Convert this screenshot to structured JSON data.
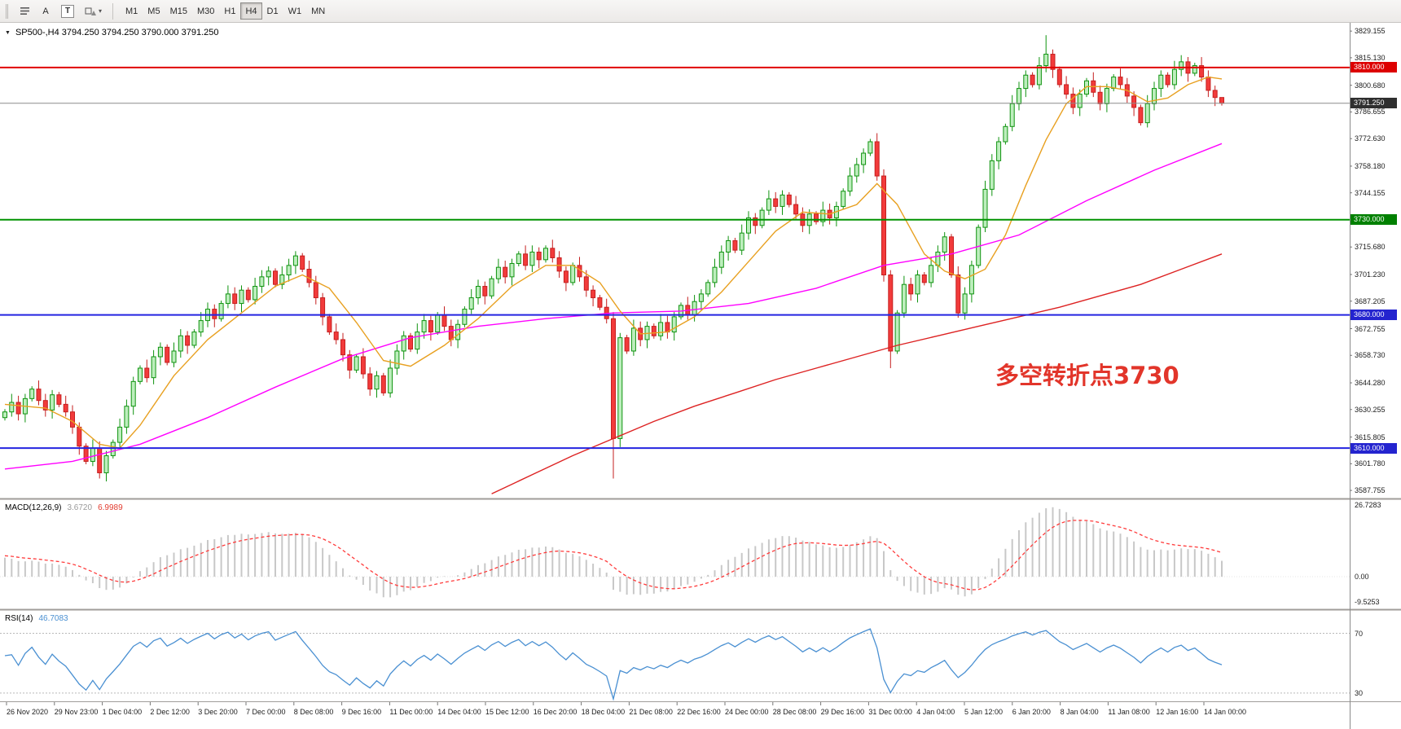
{
  "toolbar": {
    "cursor_label": "A",
    "text_label": "T",
    "timeframes": [
      {
        "label": "M1",
        "active": false
      },
      {
        "label": "M5",
        "active": false
      },
      {
        "label": "M15",
        "active": false
      },
      {
        "label": "M30",
        "active": false
      },
      {
        "label": "H1",
        "active": false
      },
      {
        "label": "H4",
        "active": true
      },
      {
        "label": "D1",
        "active": false
      },
      {
        "label": "W1",
        "active": false
      },
      {
        "label": "MN",
        "active": false
      }
    ]
  },
  "chart": {
    "symbol_ohlc": "SP500-,H4 3794.250 3794.250 3790.000 3791.250"
  },
  "chart_data": {
    "type": "candlestick",
    "symbol": "SP500-",
    "timeframe": "H4",
    "ohlc": {
      "open": 3794.25,
      "high": 3794.25,
      "low": 3790.0,
      "close": 3791.25
    },
    "y_axis": {
      "top": 3833.5,
      "bottom": 3583.5
    },
    "price_axis_labels": [
      {
        "text": "3829.155",
        "price": 3829.155
      },
      {
        "text": "3815.130",
        "price": 3815.13
      },
      {
        "text": "3800.680",
        "price": 3800.68
      },
      {
        "text": "3786.655",
        "price": 3786.655
      },
      {
        "text": "3772.630",
        "price": 3772.63
      },
      {
        "text": "3758.180",
        "price": 3758.18
      },
      {
        "text": "3744.155",
        "price": 3744.155
      },
      {
        "text": "3715.680",
        "price": 3715.68
      },
      {
        "text": "3701.230",
        "price": 3701.23
      },
      {
        "text": "3687.205",
        "price": 3687.205
      },
      {
        "text": "3672.755",
        "price": 3672.755
      },
      {
        "text": "3658.730",
        "price": 3658.73
      },
      {
        "text": "3644.280",
        "price": 3644.28
      },
      {
        "text": "3630.255",
        "price": 3630.255
      },
      {
        "text": "3615.805",
        "price": 3615.805
      },
      {
        "text": "3601.780",
        "price": 3601.78
      },
      {
        "text": "3587.755",
        "price": 3587.755
      }
    ],
    "price_badges": [
      {
        "text": "3810.000",
        "price": 3810,
        "bg": "#dd0000"
      },
      {
        "text": "3791.250",
        "price": 3791.25,
        "bg": "#2f2f2f"
      },
      {
        "text": "3730.000",
        "price": 3730,
        "bg": "#008000"
      },
      {
        "text": "3680.000",
        "price": 3680,
        "bg": "#2424cf"
      },
      {
        "text": "3610.000",
        "price": 3610,
        "bg": "#2424cf"
      }
    ],
    "hlines": [
      {
        "price": 3810,
        "color": "#e10000",
        "width": 2
      },
      {
        "price": 3730,
        "color": "#009200",
        "width": 2
      },
      {
        "price": 3680,
        "color": "#2424e0",
        "width": 2
      },
      {
        "price": 3610,
        "color": "#2424e0",
        "width": 2
      },
      {
        "price": 3791.25,
        "color": "#8c8c8c",
        "width": 1
      }
    ],
    "annotation": {
      "text": "多空转折点3730",
      "color": "#e2352a"
    },
    "first_open": 3626,
    "closes": [
      3629,
      3634,
      3628,
      3636,
      3641,
      3635,
      3630,
      3638,
      3633,
      3629,
      3621,
      3611,
      3603,
      3610,
      3597,
      3606,
      3613,
      3621,
      3632,
      3645,
      3652,
      3647,
      3658,
      3663,
      3655,
      3661,
      3669,
      3664,
      3671,
      3677,
      3683,
      3678,
      3686,
      3691,
      3686,
      3693,
      3688,
      3695,
      3700,
      3703,
      3696,
      3701,
      3706,
      3711,
      3704,
      3697,
      3689,
      3679,
      3671,
      3667,
      3659,
      3651,
      3658,
      3649,
      3641,
      3648,
      3639,
      3652,
      3661,
      3669,
      3662,
      3671,
      3677,
      3671,
      3680,
      3674,
      3667,
      3675,
      3683,
      3689,
      3695,
      3690,
      3699,
      3705,
      3700,
      3707,
      3712,
      3706,
      3713,
      3709,
      3715,
      3710,
      3703,
      3697,
      3706,
      3700,
      3693,
      3689,
      3684,
      3678,
      3615,
      3668,
      3661,
      3673,
      3667,
      3674,
      3669,
      3676,
      3671,
      3679,
      3685,
      3680,
      3687,
      3691,
      3697,
      3705,
      3713,
      3719,
      3714,
      3723,
      3731,
      3727,
      3735,
      3741,
      3737,
      3743,
      3738,
      3733,
      3727,
      3733,
      3729,
      3735,
      3731,
      3737,
      3745,
      3753,
      3759,
      3765,
      3771,
      3753,
      3701,
      3661,
      3681,
      3696,
      3691,
      3701,
      3697,
      3706,
      3713,
      3721,
      3701,
      3681,
      3691,
      3706,
      3726,
      3746,
      3761,
      3771,
      3779,
      3791,
      3799,
      3806,
      3801,
      3811,
      3817,
      3809,
      3801,
      3796,
      3789,
      3796,
      3803,
      3797,
      3791,
      3799,
      3805,
      3801,
      3795,
      3789,
      3781,
      3791,
      3799,
      3806,
      3801,
      3809,
      3813,
      3807,
      3811,
      3805,
      3798,
      3794.25,
      3791.25
    ],
    "wick_overrides": [
      {
        "i": 14,
        "low": 3594
      },
      {
        "i": 90,
        "low": 3594
      },
      {
        "i": 131,
        "low": 3652
      },
      {
        "i": 154,
        "high": 3827
      },
      {
        "i": 180,
        "high": 3794.25,
        "low": 3790
      }
    ],
    "candle_colors": {
      "up_fill": "#bdeebd",
      "up_stroke": "#0f930f",
      "down_fill": "#f23b3b",
      "down_stroke": "#c51f1f"
    },
    "ma_fast": {
      "color": "#e8a020",
      "points": [
        [
          0,
          3633
        ],
        [
          6,
          3631
        ],
        [
          10,
          3624
        ],
        [
          14,
          3612
        ],
        [
          17,
          3610
        ],
        [
          20,
          3622
        ],
        [
          25,
          3648
        ],
        [
          30,
          3667
        ],
        [
          35,
          3681
        ],
        [
          40,
          3695
        ],
        [
          44,
          3701
        ],
        [
          48,
          3694
        ],
        [
          52,
          3676
        ],
        [
          56,
          3656
        ],
        [
          60,
          3653
        ],
        [
          65,
          3664
        ],
        [
          70,
          3678
        ],
        [
          75,
          3695
        ],
        [
          80,
          3706
        ],
        [
          84,
          3706
        ],
        [
          88,
          3697
        ],
        [
          91,
          3682
        ],
        [
          94,
          3670
        ],
        [
          98,
          3671
        ],
        [
          102,
          3679
        ],
        [
          106,
          3692
        ],
        [
          110,
          3708
        ],
        [
          114,
          3724
        ],
        [
          118,
          3734
        ],
        [
          122,
          3733
        ],
        [
          126,
          3738
        ],
        [
          129,
          3749
        ],
        [
          132,
          3738
        ],
        [
          136,
          3712
        ],
        [
          139,
          3703
        ],
        [
          142,
          3699
        ],
        [
          145,
          3704
        ],
        [
          148,
          3722
        ],
        [
          151,
          3748
        ],
        [
          154,
          3772
        ],
        [
          157,
          3791
        ],
        [
          160,
          3800
        ],
        [
          163,
          3800
        ],
        [
          166,
          3798
        ],
        [
          169,
          3792
        ],
        [
          172,
          3794
        ],
        [
          175,
          3801
        ],
        [
          178,
          3805
        ],
        [
          180,
          3804
        ]
      ]
    },
    "ma_mid": {
      "color": "#ff00ff",
      "points": [
        [
          0,
          3599
        ],
        [
          10,
          3603
        ],
        [
          20,
          3612
        ],
        [
          30,
          3626
        ],
        [
          40,
          3642
        ],
        [
          50,
          3657
        ],
        [
          60,
          3668
        ],
        [
          70,
          3674
        ],
        [
          80,
          3678
        ],
        [
          90,
          3681
        ],
        [
          100,
          3682
        ],
        [
          110,
          3686
        ],
        [
          120,
          3694
        ],
        [
          130,
          3706
        ],
        [
          140,
          3712
        ],
        [
          150,
          3722
        ],
        [
          160,
          3740
        ],
        [
          170,
          3756
        ],
        [
          180,
          3770
        ]
      ]
    },
    "ma_slow": {
      "color": "#dd2222",
      "points": [
        [
          72,
          3586
        ],
        [
          78,
          3596
        ],
        [
          84,
          3606
        ],
        [
          90,
          3615
        ],
        [
          96,
          3624
        ],
        [
          102,
          3632
        ],
        [
          108,
          3639
        ],
        [
          114,
          3646
        ],
        [
          120,
          3652
        ],
        [
          126,
          3658
        ],
        [
          132,
          3664
        ],
        [
          138,
          3669
        ],
        [
          144,
          3674
        ],
        [
          150,
          3679
        ],
        [
          156,
          3684
        ],
        [
          162,
          3690
        ],
        [
          168,
          3696
        ],
        [
          174,
          3704
        ],
        [
          180,
          3712
        ]
      ]
    },
    "time_labels": [
      "26 Nov 2020",
      "29 Nov 23:00",
      "1 Dec 04:00",
      "2 Dec 12:00",
      "3 Dec 20:00",
      "7 Dec 00:00",
      "8 Dec 08:00",
      "9 Dec 16:00",
      "11 Dec 00:00",
      "14 Dec 04:00",
      "15 Dec 12:00",
      "16 Dec 20:00",
      "18 Dec 04:00",
      "21 Dec 08:00",
      "22 Dec 16:00",
      "24 Dec 00:00",
      "28 Dec 08:00",
      "29 Dec 16:00",
      "31 Dec 00:00",
      "4 Jan 04:00",
      "5 Jan 12:00",
      "6 Jan 20:00",
      "8 Jan 04:00",
      "11 Jan 08:00",
      "12 Jan 16:00",
      "14 Jan 00:00"
    ],
    "macd": {
      "label": "MACD(12,26,9)",
      "value_main": "3.6720",
      "value_signal": "6.9989",
      "value_main_color": "#9a9a9a",
      "value_signal_color": "#e23b2e",
      "hist_color": "#c8c8c8",
      "signal_color": "#ff3b3b",
      "axis_labels": [
        {
          "text": "26.7283",
          "value": 26.7283
        },
        {
          "text": "0.00",
          "value": 0
        },
        {
          "text": "-9.5253",
          "value": -9.5253
        }
      ]
    },
    "rsi": {
      "label": "RSI(14)",
      "value": "46.7083",
      "line_color": "#4a90d2",
      "levels": [
        70,
        30
      ],
      "axis_labels": [
        {
          "text": "70",
          "value": 70
        },
        {
          "text": "30",
          "value": 30
        }
      ]
    }
  }
}
